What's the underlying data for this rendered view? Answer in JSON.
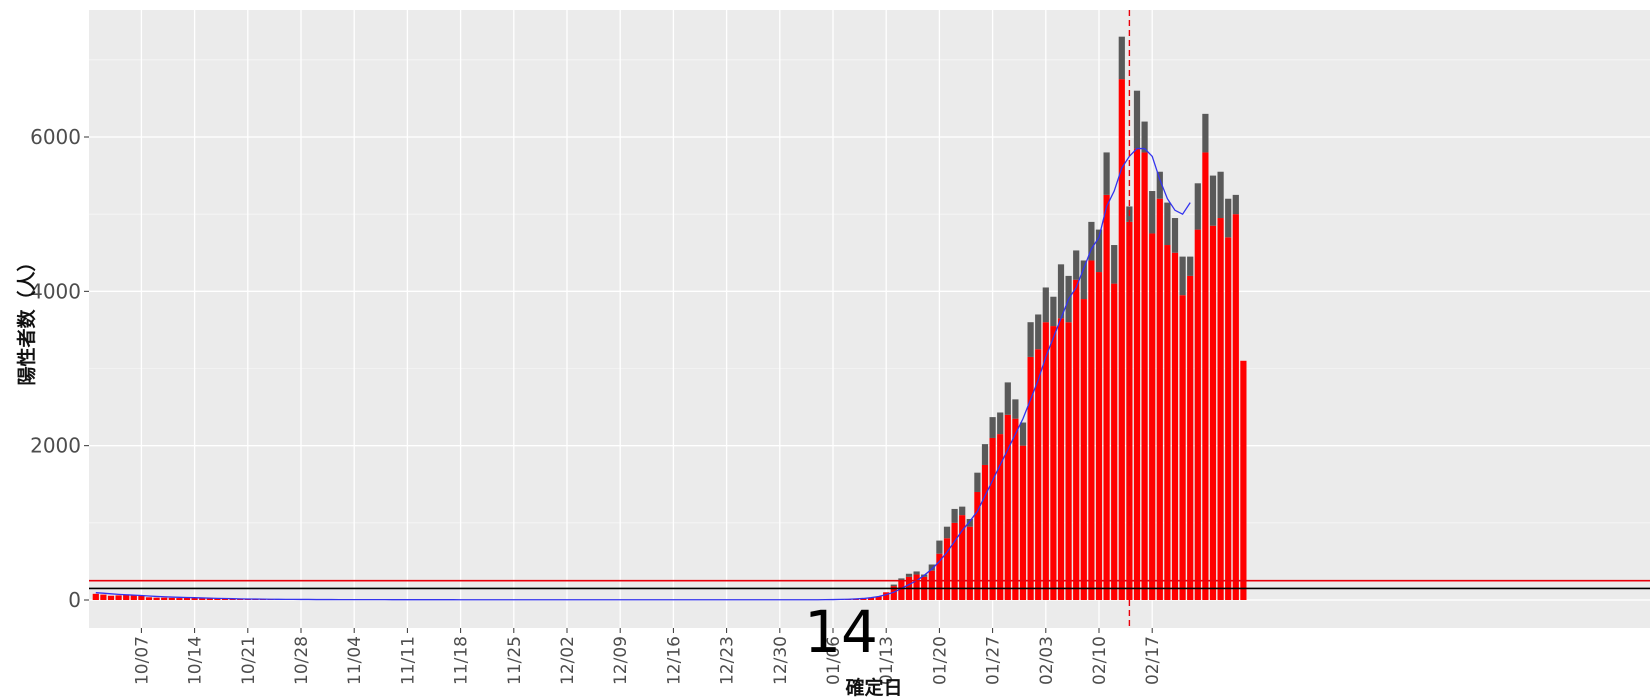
{
  "chart_data": {
    "type": "bar",
    "title": "",
    "xlabel": "確定日",
    "ylabel": "陽性者数（人）",
    "overlay_label": "14",
    "ylim": [
      -350,
      7550
    ],
    "y_ticks": [
      0,
      2000,
      4000,
      6000
    ],
    "y_tick_labels": [
      "0",
      "2000",
      "4000",
      "6000"
    ],
    "x_tick_labels": [
      "10/07",
      "10/14",
      "10/21",
      "10/28",
      "11/04",
      "11/11",
      "11/18",
      "11/25",
      "12/02",
      "12/09",
      "12/16",
      "12/23",
      "12/30",
      "01/06",
      "01/13",
      "01/20",
      "01/27",
      "02/03",
      "02/10",
      "02/17"
    ],
    "grid": true,
    "stacked": true,
    "start_date": "2022-10-01",
    "start_day_offset": 0,
    "ref_lines": [
      {
        "name": "",
        "value": 250,
        "color": "#e8000b"
      },
      {
        "name": "",
        "value": 150,
        "color": "#000000"
      }
    ],
    "vline_date": "2023-02-14",
    "series": [
      {
        "name": "",
        "color": "#ff0000",
        "values": [
          80,
          70,
          55,
          60,
          65,
          62,
          58,
          35,
          30,
          30,
          28,
          25,
          30,
          28,
          22,
          20,
          18,
          15,
          15,
          12,
          12,
          10,
          10,
          10,
          8,
          8,
          8,
          8,
          6,
          6,
          6,
          6,
          5,
          5,
          5,
          5,
          5,
          5,
          5,
          4,
          4,
          4,
          4,
          4,
          4,
          4,
          4,
          4,
          3,
          3,
          3,
          3,
          3,
          3,
          3,
          3,
          3,
          3,
          3,
          3,
          3,
          3,
          3,
          3,
          3,
          3,
          3,
          3,
          3,
          3,
          3,
          3,
          3,
          3,
          3,
          3,
          3,
          3,
          3,
          3,
          3,
          3,
          3,
          3,
          3,
          3,
          3,
          3,
          3,
          3,
          3,
          3,
          3,
          3,
          3,
          5,
          5,
          5,
          8,
          10,
          15,
          20,
          30,
          45,
          100,
          180,
          250,
          300,
          330,
          300,
          380,
          600,
          800,
          1000,
          1100,
          950,
          1400,
          1750,
          2100,
          2150,
          2400,
          2350,
          2000,
          3150,
          3250,
          3600,
          3550,
          3650,
          3600,
          4150,
          3900,
          4400,
          4250,
          5250,
          4100,
          6750,
          4900,
          5850,
          5800,
          4750,
          5200,
          4600,
          4500,
          3950,
          4200,
          4800,
          5800,
          4850,
          4950,
          4700,
          5000,
          3100
        ],
        "gray_values": [
          0,
          0,
          0,
          0,
          0,
          0,
          0,
          0,
          0,
          0,
          0,
          0,
          0,
          0,
          0,
          0,
          0,
          0,
          0,
          0,
          0,
          0,
          0,
          0,
          0,
          0,
          0,
          0,
          0,
          0,
          0,
          0,
          0,
          0,
          0,
          0,
          0,
          0,
          0,
          0,
          0,
          0,
          0,
          0,
          0,
          0,
          0,
          0,
          0,
          0,
          0,
          0,
          0,
          0,
          0,
          0,
          0,
          0,
          0,
          0,
          0,
          0,
          0,
          0,
          0,
          0,
          0,
          0,
          0,
          0,
          0,
          0,
          0,
          0,
          0,
          0,
          0,
          0,
          0,
          0,
          0,
          0,
          0,
          0,
          0,
          0,
          0,
          0,
          0,
          0,
          0,
          0,
          0,
          0,
          0,
          0,
          0,
          0,
          0,
          0,
          0,
          0,
          0,
          0,
          0,
          20,
          30,
          40,
          40,
          30,
          80,
          170,
          150,
          180,
          110,
          100,
          250,
          270,
          270,
          280,
          420,
          250,
          300,
          450,
          450,
          450,
          380,
          700,
          600,
          380,
          500,
          500,
          550,
          550,
          500,
          550,
          200,
          750,
          400,
          550,
          350,
          550,
          450,
          500,
          250,
          600,
          500,
          650,
          600,
          500,
          250,
          0
        ]
      }
    ],
    "moving_avg": {
      "name": "",
      "color": "#3333ee",
      "values": [
        95,
        88,
        80,
        73,
        68,
        63,
        58,
        52,
        46,
        42,
        38,
        35,
        32,
        30,
        27,
        24,
        21,
        19,
        17,
        15,
        13,
        12,
        11,
        10,
        9,
        8,
        8,
        7,
        7,
        6,
        6,
        6,
        5,
        5,
        5,
        5,
        5,
        5,
        5,
        4,
        4,
        4,
        4,
        4,
        4,
        4,
        4,
        4,
        3,
        3,
        3,
        3,
        3,
        3,
        3,
        3,
        3,
        3,
        3,
        3,
        3,
        3,
        3,
        3,
        3,
        3,
        3,
        3,
        3,
        3,
        3,
        3,
        3,
        3,
        3,
        3,
        3,
        3,
        3,
        3,
        3,
        3,
        3,
        3,
        3,
        3,
        3,
        3,
        3,
        3,
        3,
        3,
        3,
        3,
        3,
        3,
        5,
        6,
        8,
        10,
        14,
        20,
        30,
        45,
        70,
        100,
        150,
        200,
        250,
        320,
        400,
        500,
        620,
        760,
        900,
        1020,
        1150,
        1350,
        1550,
        1750,
        1950,
        2150,
        2350,
        2600,
        2850,
        3150,
        3400,
        3650,
        3900,
        4050,
        4300,
        4550,
        4700,
        5100,
        5300,
        5600,
        5750,
        5850,
        5850,
        5750,
        5450,
        5200,
        5050,
        5000,
        5150
      ],
      "end_index": 144
    }
  }
}
